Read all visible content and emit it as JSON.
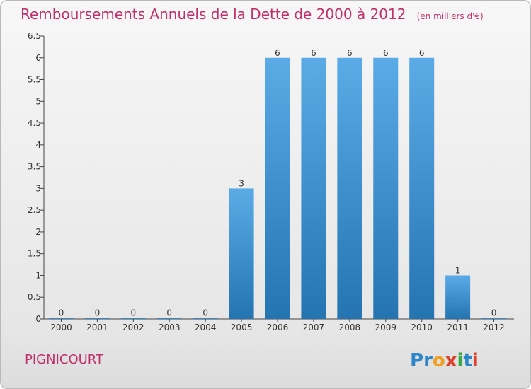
{
  "chart_data": {
    "type": "bar",
    "title": "Remboursements Annuels de la Dette de 2000 à 2012",
    "subtitle": "(en milliers d'€)",
    "categories": [
      "2000",
      "2001",
      "2002",
      "2003",
      "2004",
      "2005",
      "2006",
      "2007",
      "2008",
      "2009",
      "2010",
      "2011",
      "2012"
    ],
    "values": [
      0,
      0,
      0,
      0,
      0,
      3,
      6,
      6,
      6,
      6,
      6,
      1,
      0
    ],
    "ylim": [
      0,
      6.5
    ],
    "yticks": [
      "0",
      "0.5",
      "1",
      "1.5",
      "2",
      "2.5",
      "3",
      "3.5",
      "4",
      "4.5",
      "5",
      "5.5",
      "6",
      "6.5"
    ],
    "xlabel": "",
    "ylabel": "",
    "grid": false,
    "bar_color_top": "#5aabe6",
    "bar_color_bottom": "#2474b2"
  },
  "commune": "PIGNICOURT",
  "logo": {
    "text": "Proxiti",
    "letters": [
      "P",
      "r",
      "o",
      "x",
      "i",
      "t",
      "i"
    ],
    "colors": [
      "#2e86c8",
      "#2e86c8",
      "#f0a020",
      "#e0402a",
      "#3aa845",
      "#2e86c8",
      "#e0402a"
    ]
  }
}
